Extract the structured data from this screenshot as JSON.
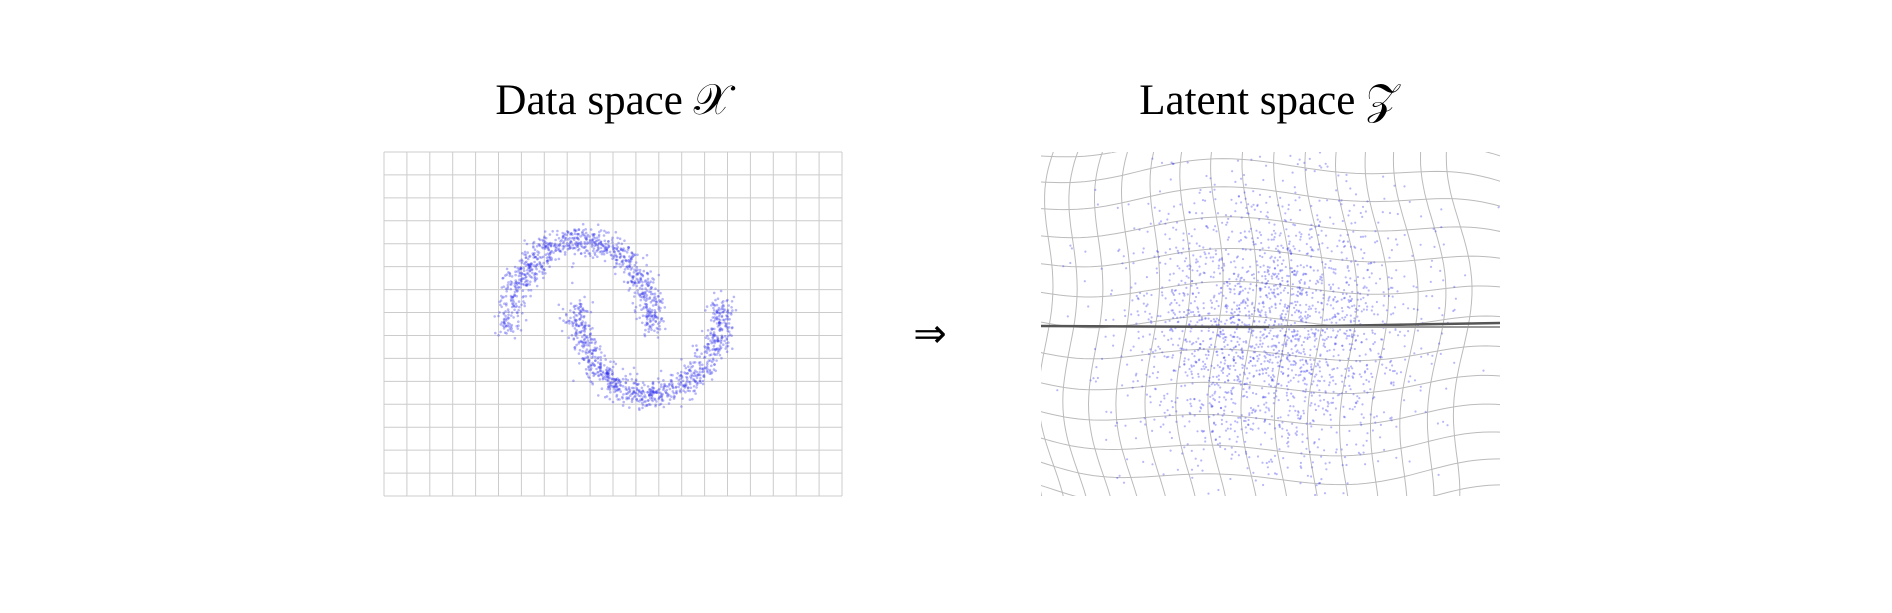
{
  "panels": [
    {
      "title": "Data space 𝒳"
    },
    {
      "title": "Latent space 𝒵"
    }
  ],
  "arrow": "⇒"
}
